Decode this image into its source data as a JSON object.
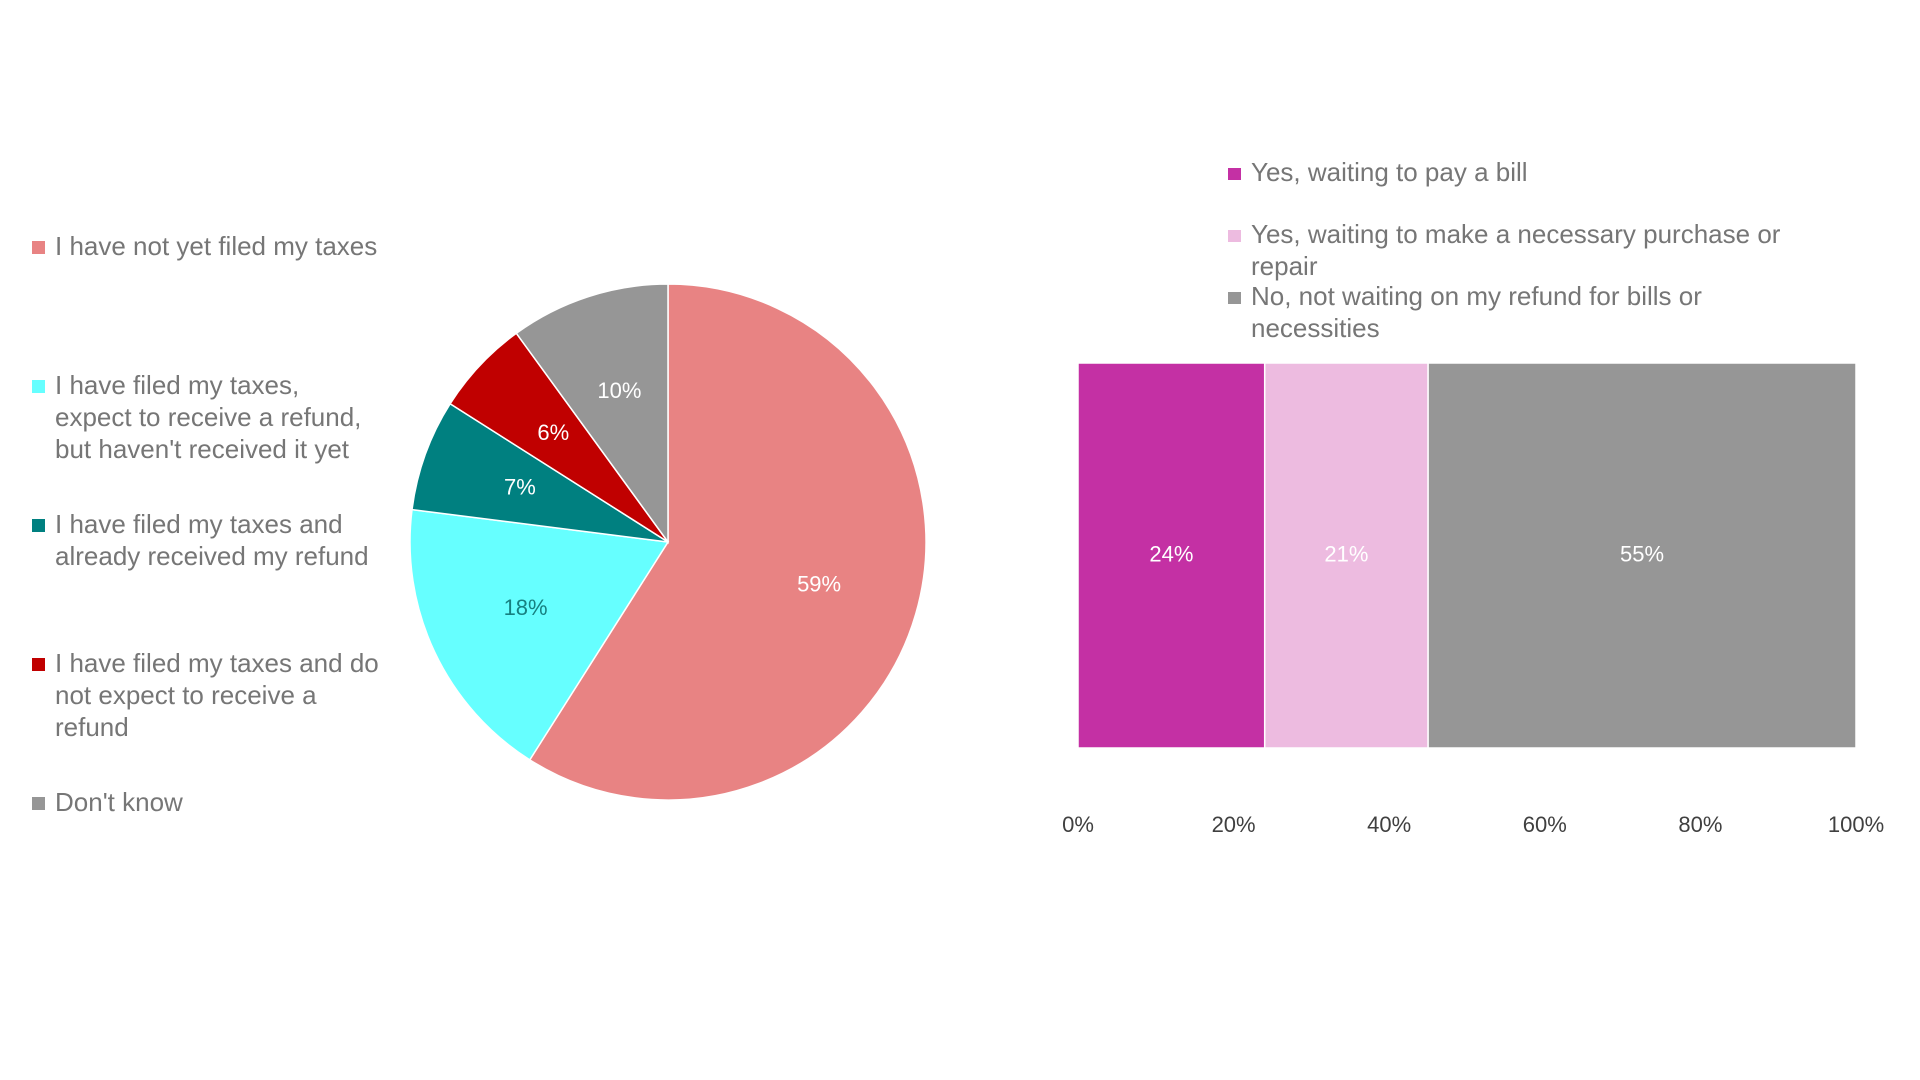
{
  "chart_data": [
    {
      "type": "pie",
      "title": "",
      "slices": [
        {
          "label": "I have not yet filed my taxes",
          "value": 59,
          "value_label": "59%",
          "color": "#E88383",
          "label_color": "#ffffff"
        },
        {
          "label": "I have filed my taxes, expect to receive a refund, but haven't received it yet",
          "value": 18,
          "value_label": "18%",
          "color": "#66FFFF",
          "label_color": "#178080"
        },
        {
          "label": "I have filed my taxes and already received my refund",
          "value": 7,
          "value_label": "7%",
          "color": "#008080",
          "label_color": "#ffffff"
        },
        {
          "label": "I have filed my taxes and do not expect to receive a refund",
          "value": 6,
          "value_label": "6%",
          "color": "#C00000",
          "label_color": "#ffffff"
        },
        {
          "label": "Don't know",
          "value": 10,
          "value_label": "10%",
          "color": "#969696",
          "label_color": "#ffffff"
        }
      ],
      "legend_position": "left"
    },
    {
      "type": "bar",
      "orientation": "horizontal",
      "stacked": true,
      "normalized": true,
      "title": "",
      "xlabel": "",
      "ylabel": "",
      "xlim": [
        0,
        100
      ],
      "x_ticks": [
        "0%",
        "20%",
        "40%",
        "60%",
        "80%",
        "100%"
      ],
      "grid": false,
      "legend_position": "top",
      "series": [
        {
          "name": "Yes, waiting to pay a bill",
          "value": 24,
          "value_label": "24%",
          "color": "#C430A4",
          "label_color": "#ffffff"
        },
        {
          "name": "Yes, waiting to make a necessary purchase or repair",
          "value": 21,
          "value_label": "21%",
          "color": "#EDBBE0",
          "label_color": "#ffffff"
        },
        {
          "name": "No, not waiting on my refund for bills or necessities",
          "value": 55,
          "value_label": "55%",
          "color": "#969696",
          "label_color": "#ffffff"
        }
      ]
    }
  ]
}
